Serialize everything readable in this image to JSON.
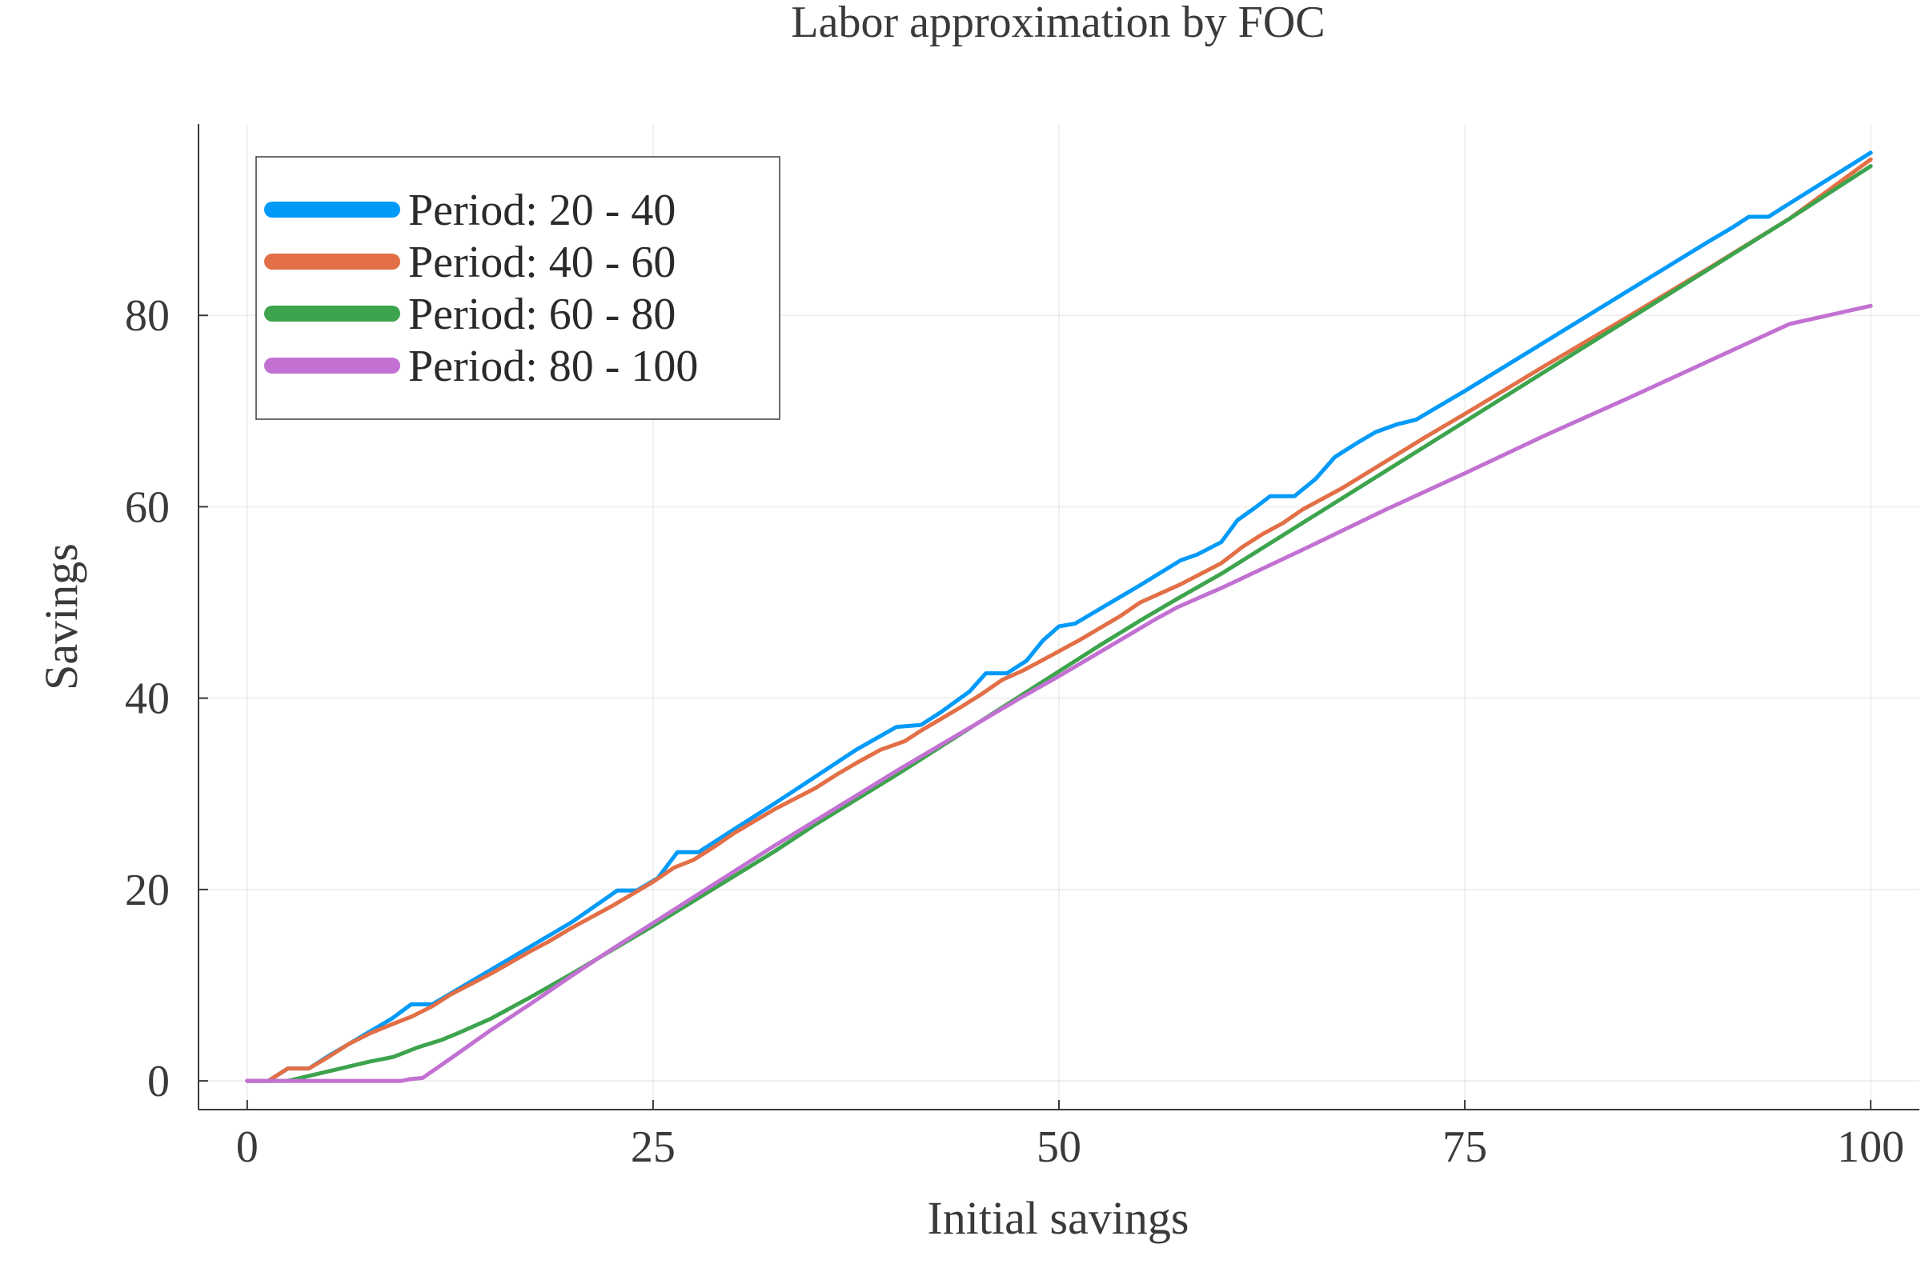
{
  "chart_data": {
    "type": "line",
    "title": "Labor approximation by FOC",
    "xlabel": "Initial savings",
    "ylabel": "Savings",
    "xlim": [
      -3,
      103
    ],
    "ylim": [
      -3,
      100
    ],
    "xticks": [
      0,
      25,
      50,
      75,
      100
    ],
    "yticks": [
      0,
      20,
      40,
      60,
      80
    ],
    "grid": true,
    "legend_position": "top-left",
    "series": [
      {
        "name": "Period: 20 - 40",
        "color": "#009af9",
        "x": [
          0,
          1.3,
          2.5,
          3.8,
          5,
          6.3,
          7.6,
          8.9,
          10.1,
          11.4,
          12.5,
          13.5,
          15,
          17.5,
          20,
          22.8,
          24,
          25.3,
          26.5,
          27.8,
          30,
          32.5,
          35,
          37.5,
          40,
          41.5,
          42.7,
          44.5,
          45.5,
          46.8,
          48,
          49,
          50,
          51,
          52,
          55,
          57.5,
          58.5,
          60,
          61,
          62,
          63,
          64.5,
          65.8,
          67,
          68.3,
          69.5,
          70.8,
          72,
          73.1,
          75,
          80,
          85,
          90,
          91.5,
          92.5,
          93.7,
          95,
          100
        ],
        "y": [
          0,
          0,
          1.3,
          1.3,
          2.6,
          3.9,
          5.2,
          6.5,
          8,
          8,
          9.1,
          10.1,
          11.6,
          14.1,
          16.6,
          19.9,
          19.9,
          21.2,
          23.9,
          23.9,
          26.3,
          29,
          31.8,
          34.6,
          37,
          37.2,
          38.5,
          40.7,
          42.6,
          42.6,
          43.9,
          46,
          47.5,
          47.8,
          48.8,
          51.8,
          54.4,
          55,
          56.3,
          58.6,
          59.8,
          61.1,
          61.1,
          62.9,
          65.2,
          66.6,
          67.8,
          68.6,
          69.1,
          70.2,
          72.1,
          77.3,
          82.5,
          87.7,
          89.2,
          90.3,
          90.3,
          91.7,
          97
        ]
      },
      {
        "name": "Period: 40 - 60",
        "color": "#e26f46",
        "x": [
          0,
          1.3,
          2.5,
          3.8,
          5,
          6.3,
          7.6,
          8.9,
          10.1,
          11.4,
          12.5,
          15,
          17.5,
          18.5,
          20,
          22.5,
          25,
          26.3,
          27.5,
          28.8,
          30,
          32.5,
          35,
          36.3,
          37.5,
          39,
          40.5,
          41.5,
          42.8,
          44,
          45.3,
          46.5,
          47.8,
          48.8,
          50,
          51.3,
          52.5,
          53.8,
          55,
          57.5,
          60,
          61.3,
          62.5,
          63.8,
          65,
          67.5,
          70,
          72.5,
          75,
          80,
          85,
          90,
          95,
          100
        ],
        "y": [
          0,
          0,
          1.3,
          1.3,
          2.5,
          3.9,
          5,
          5.9,
          6.7,
          7.8,
          9,
          11.2,
          13.6,
          14.5,
          16,
          18.3,
          20.8,
          22.3,
          23.1,
          24.5,
          25.9,
          28.4,
          30.6,
          32,
          33.2,
          34.6,
          35.5,
          36.6,
          37.9,
          39.1,
          40.5,
          41.9,
          42.9,
          43.8,
          44.9,
          46.1,
          47.3,
          48.6,
          50,
          51.9,
          54.1,
          55.8,
          57.1,
          58.3,
          59.7,
          62,
          64.6,
          67.2,
          69.7,
          74.8,
          79.8,
          84.9,
          90.1,
          96.3
        ]
      },
      {
        "name": "Period: 60 - 80",
        "color": "#3da44d",
        "x": [
          0,
          2.5,
          5,
          7.5,
          9,
          10.5,
          12,
          13,
          15,
          17.5,
          20,
          22.5,
          25,
          27.5,
          30,
          32.5,
          35,
          37.5,
          40,
          42.5,
          45,
          47.5,
          50,
          52.5,
          55,
          56.2,
          57.3,
          60,
          65,
          70,
          75,
          80,
          85,
          90,
          95,
          100
        ],
        "y": [
          0,
          0,
          1,
          2,
          2.5,
          3.5,
          4.3,
          5,
          6.5,
          8.8,
          11.2,
          13.7,
          16.2,
          18.8,
          21.4,
          24,
          26.8,
          29.4,
          32,
          34.7,
          37.4,
          40.1,
          42.8,
          45.5,
          48.1,
          49.3,
          50.4,
          53,
          58.3,
          63.6,
          68.9,
          74.2,
          79.5,
          84.8,
          90.1,
          95.6
        ]
      },
      {
        "name": "Period: 80 - 100",
        "color": "#c271d2",
        "x": [
          0,
          5,
          9.5,
          10.1,
          10.8,
          12.5,
          15,
          17.5,
          20,
          22.5,
          25,
          27.5,
          30,
          32.5,
          35,
          37.5,
          40,
          42.5,
          45,
          47.5,
          50,
          52.5,
          55,
          56,
          57.3,
          60,
          65,
          70,
          75,
          80,
          85,
          90,
          95,
          100
        ],
        "y": [
          0,
          0,
          0,
          0.2,
          0.3,
          2.3,
          5.3,
          8.1,
          11,
          13.8,
          16.5,
          19.2,
          21.9,
          24.6,
          27.2,
          29.8,
          32.4,
          34.9,
          37.4,
          39.9,
          42.3,
          44.8,
          47.3,
          48.3,
          49.5,
          51.5,
          55.5,
          59.6,
          63.5,
          67.5,
          71.3,
          75.2,
          79.1,
          81
        ]
      }
    ]
  }
}
